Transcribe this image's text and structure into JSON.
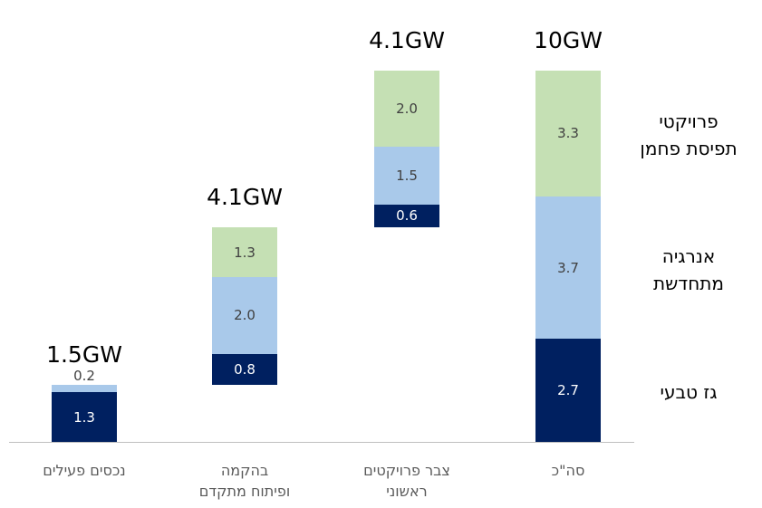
{
  "chart_data": {
    "type": "waterfall",
    "categories": [
      "נכסים פעילים",
      "בהקמה\nופיתוח מתקדם",
      "צבר פרויקטים\nראשוני",
      "סה\"כ"
    ],
    "is_total": [
      false,
      false,
      false,
      true
    ],
    "total_labels": [
      "1.5GW",
      "4.1GW",
      "4.1GW",
      "10GW"
    ],
    "series": [
      {
        "name": "גז טבעי",
        "color": "#002060",
        "label_color": "#ffffff",
        "values": [
          1.3,
          0.8,
          0.6,
          2.7
        ],
        "value_labels": [
          "1.3",
          "0.8",
          "0.6",
          "2.7"
        ]
      },
      {
        "name": "אנרגיה\nמתחדשת",
        "color": "#a9c9ea",
        "label_color": "#404040",
        "values": [
          0.2,
          2.0,
          1.5,
          3.7
        ],
        "value_labels": [
          "0.2",
          "2.0",
          "1.5",
          "3.7"
        ]
      },
      {
        "name": "פרויקטי\nתפיסת פחמן",
        "color": "#c5e0b4",
        "label_color": "#404040",
        "values": [
          null,
          1.3,
          2.0,
          3.3
        ],
        "value_labels": [
          null,
          "1.3",
          "2.0",
          "3.3"
        ]
      }
    ],
    "ylim": [
      0,
      10
    ]
  }
}
